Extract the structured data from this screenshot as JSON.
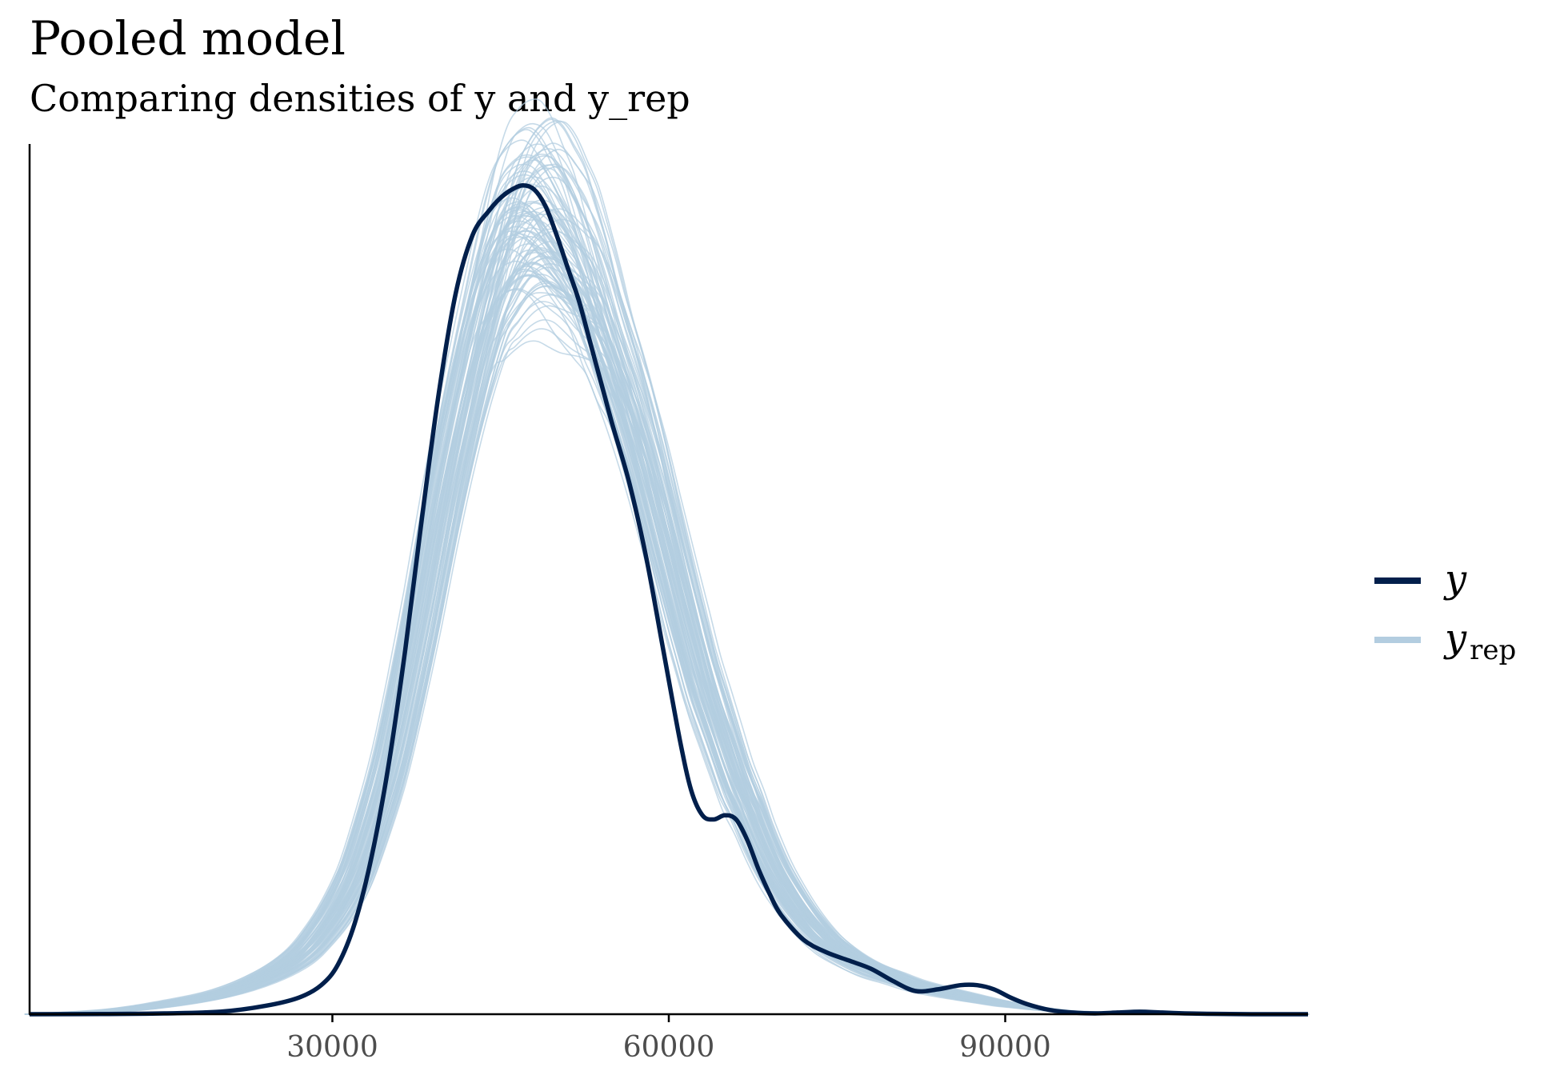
{
  "chart_data": {
    "type": "line",
    "title": "Pooled model",
    "subtitle": "Comparing densities of y and y_rep",
    "xlabel": "",
    "ylabel": "",
    "xlim": [
      3000,
      117000
    ],
    "ylim": [
      0,
      1.05
    ],
    "x_ticks": [
      30000,
      60000,
      90000
    ],
    "x_tick_labels": [
      "30000",
      "60000",
      "90000"
    ],
    "y_axis_ticks_shown": false,
    "grid": false,
    "legend_position": "right",
    "colors": {
      "y": "#011f4b",
      "y_rep": "#b3cde0",
      "axis": "#000000"
    },
    "legend": [
      {
        "label": "y",
        "color": "#011f4b"
      },
      {
        "label": "y",
        "subscript": "rep",
        "color": "#b3cde0"
      }
    ],
    "series": [
      {
        "name": "y",
        "x": [
          3000,
          10000,
          15000,
          20000,
          24000,
          27000,
          29000,
          30500,
          32000,
          33500,
          35000,
          36500,
          38000,
          39500,
          41000,
          42500,
          44000,
          45000,
          46000,
          47000,
          48000,
          49000,
          50000,
          51000,
          52000,
          53000,
          54000,
          55000,
          56500,
          58000,
          59500,
          61000,
          62000,
          63000,
          64000,
          65000,
          66000,
          67000,
          68000,
          69000,
          70000,
          72000,
          74000,
          76000,
          78000,
          80000,
          82000,
          84000,
          86000,
          87500,
          89000,
          90500,
          92000,
          94000,
          96000,
          98000,
          100000,
          102000,
          104000,
          106000,
          108000,
          112000,
          117000
        ],
        "y": [
          0.0,
          0.0003,
          0.001,
          0.003,
          0.01,
          0.02,
          0.035,
          0.06,
          0.11,
          0.19,
          0.3,
          0.44,
          0.6,
          0.75,
          0.87,
          0.94,
          0.97,
          0.985,
          0.995,
          1.0,
          0.995,
          0.975,
          0.94,
          0.9,
          0.86,
          0.81,
          0.76,
          0.71,
          0.64,
          0.55,
          0.44,
          0.33,
          0.27,
          0.24,
          0.235,
          0.24,
          0.235,
          0.21,
          0.175,
          0.145,
          0.12,
          0.09,
          0.075,
          0.065,
          0.055,
          0.04,
          0.028,
          0.03,
          0.035,
          0.035,
          0.03,
          0.02,
          0.012,
          0.005,
          0.002,
          0.001,
          0.002,
          0.003,
          0.002,
          0.001,
          0.0005,
          0.0,
          0.0
        ]
      },
      {
        "name": "y_rep",
        "draws": 100,
        "x": [
          3000,
          10000,
          15000,
          20000,
          24000,
          27000,
          29000,
          30500,
          32000,
          33500,
          35000,
          36500,
          38000,
          39500,
          41000,
          42500,
          44000,
          45000,
          46000,
          47000,
          48000,
          49000,
          50000,
          51000,
          52000,
          53000,
          54000,
          55000,
          56500,
          58000,
          59500,
          61000,
          62000,
          63000,
          64000,
          65000,
          66000,
          67000,
          68000,
          69000,
          70000,
          72000,
          74000,
          76000,
          78000,
          80000,
          82000,
          84000,
          86000,
          87500,
          89000,
          90500,
          92000,
          94000,
          96000,
          98000,
          100000,
          102000,
          104000,
          106000,
          108000,
          112000,
          117000
        ],
        "y_mean": [
          0.0,
          0.004,
          0.012,
          0.025,
          0.045,
          0.07,
          0.1,
          0.13,
          0.17,
          0.23,
          0.3,
          0.39,
          0.49,
          0.6,
          0.7,
          0.79,
          0.87,
          0.91,
          0.94,
          0.955,
          0.96,
          0.955,
          0.94,
          0.92,
          0.9,
          0.87,
          0.83,
          0.79,
          0.73,
          0.66,
          0.58,
          0.5,
          0.45,
          0.4,
          0.36,
          0.32,
          0.28,
          0.25,
          0.215,
          0.185,
          0.16,
          0.12,
          0.09,
          0.07,
          0.055,
          0.045,
          0.035,
          0.028,
          0.022,
          0.018,
          0.014,
          0.011,
          0.008,
          0.005,
          0.003,
          0.002,
          0.001,
          0.0005,
          0.0,
          0.0,
          0.0,
          0.0,
          0.0
        ],
        "y_spread": [
          0.0,
          0.002,
          0.004,
          0.006,
          0.01,
          0.015,
          0.02,
          0.025,
          0.03,
          0.035,
          0.04,
          0.045,
          0.05,
          0.055,
          0.06,
          0.07,
          0.09,
          0.12,
          0.14,
          0.15,
          0.16,
          0.17,
          0.17,
          0.16,
          0.15,
          0.13,
          0.12,
          0.1,
          0.09,
          0.08,
          0.07,
          0.065,
          0.06,
          0.055,
          0.05,
          0.045,
          0.04,
          0.035,
          0.03,
          0.027,
          0.024,
          0.02,
          0.017,
          0.014,
          0.012,
          0.01,
          0.009,
          0.008,
          0.007,
          0.006,
          0.005,
          0.004,
          0.003,
          0.002,
          0.001,
          0.001,
          0.0005,
          0.0,
          0.0,
          0.0,
          0.0,
          0.0,
          0.0
        ]
      }
    ]
  }
}
